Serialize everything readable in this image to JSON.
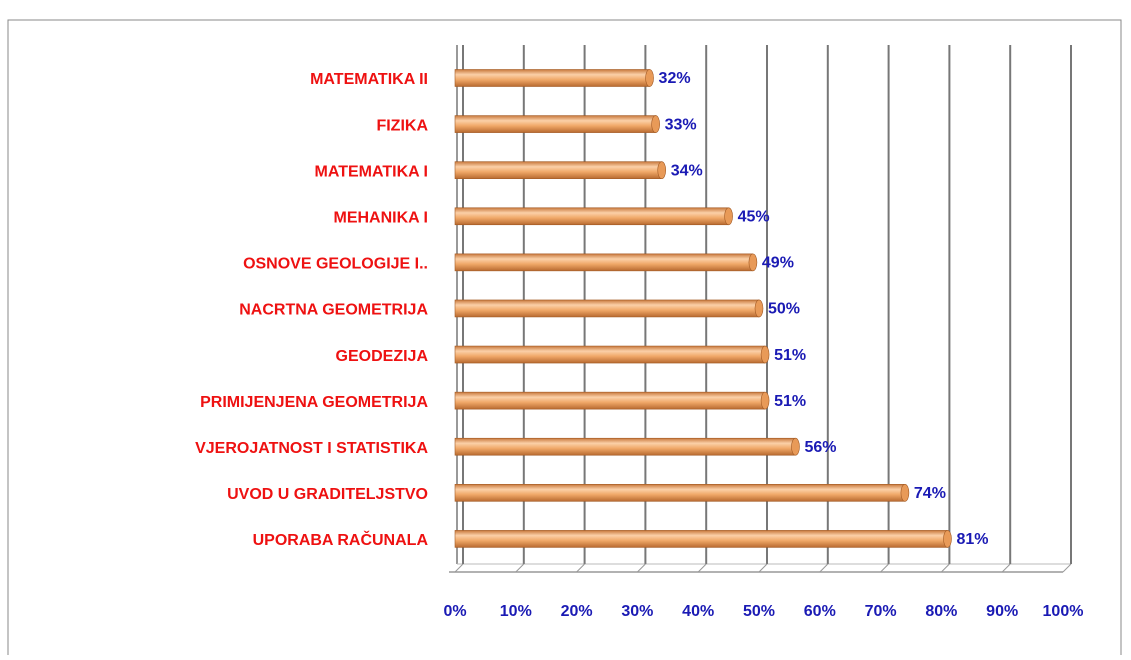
{
  "chart_data": {
    "type": "bar",
    "orientation": "horizontal",
    "categories": [
      "MATEMATIKA II",
      "FIZIKA",
      "MATEMATIKA I",
      "MEHANIKA I",
      "OSNOVE GEOLOGIJE I..",
      "NACRTNA  GEOMETRIJA",
      "GEODEZIJA",
      "PRIMIJENJENA GEOMETRIJA",
      "VJEROJATNOST I STATISTIKA",
      "UVOD U GRADITELJSTVO",
      "UPORABA RAČUNALA"
    ],
    "values": [
      32,
      33,
      34,
      45,
      49,
      50,
      51,
      51,
      56,
      74,
      81
    ],
    "value_labels": [
      "32%",
      "33%",
      "34%",
      "45%",
      "49%",
      "50%",
      "51%",
      "51%",
      "56%",
      "74%",
      "81%"
    ],
    "color": "#f0a868",
    "xlim": [
      0,
      100
    ],
    "xticks": [
      {
        "value": 0,
        "label": "0%"
      },
      {
        "value": 10,
        "label": "10%"
      },
      {
        "value": 20,
        "label": "20%"
      },
      {
        "value": 30,
        "label": "30%"
      },
      {
        "value": 40,
        "label": "40%"
      },
      {
        "value": 50,
        "label": "50%"
      },
      {
        "value": 60,
        "label": "60%"
      },
      {
        "value": 70,
        "label": "70%"
      },
      {
        "value": 80,
        "label": "80%"
      },
      {
        "value": 90,
        "label": "90%"
      },
      {
        "value": 100,
        "label": "100%"
      }
    ],
    "grid": true
  }
}
